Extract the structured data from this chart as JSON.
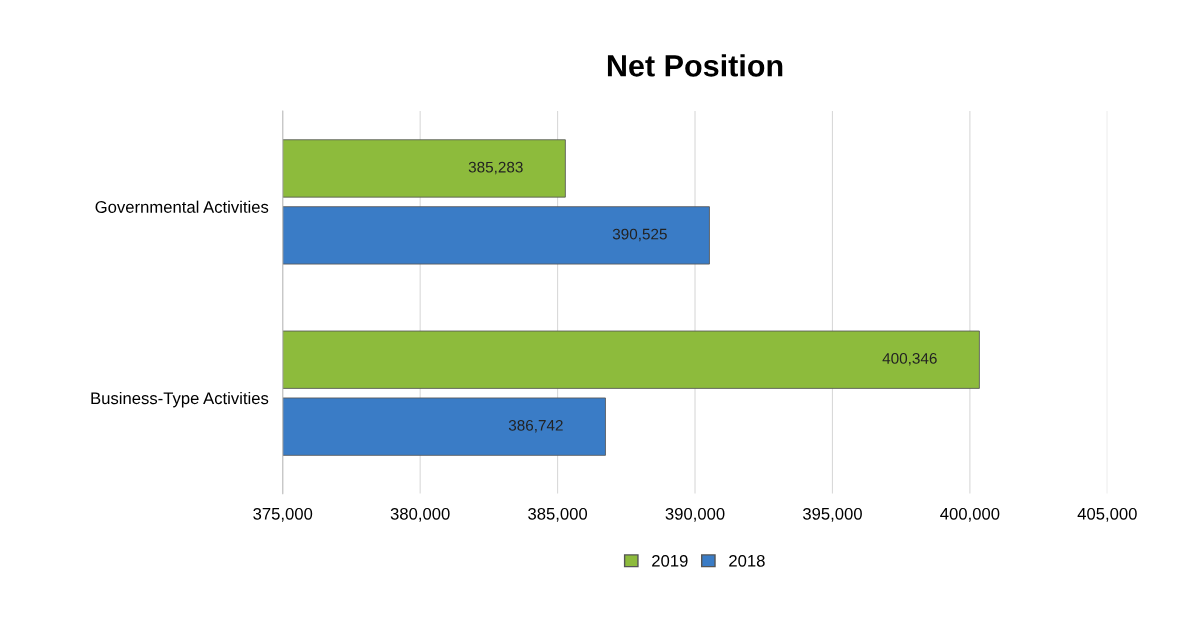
{
  "chart_data": {
    "type": "bar",
    "orientation": "horizontal",
    "title": "Net Position",
    "categories": [
      "Governmental Activities",
      "Business-Type Activities"
    ],
    "series": [
      {
        "name": "2019",
        "color": "#8dbb3c",
        "values": [
          385283,
          400346
        ],
        "value_labels": [
          "385,283",
          "400,346"
        ]
      },
      {
        "name": "2018",
        "color": "#3a7cc6",
        "values": [
          390525,
          386742
        ],
        "value_labels": [
          "390,525",
          "386,742"
        ]
      }
    ],
    "xlim": [
      375000,
      405000
    ],
    "xticks": [
      {
        "value": 375000,
        "label": "375,000"
      },
      {
        "value": 380000,
        "label": "380,000"
      },
      {
        "value": 385000,
        "label": "385,000"
      },
      {
        "value": 390000,
        "label": "390,000"
      },
      {
        "value": 395000,
        "label": "395,000"
      },
      {
        "value": 400000,
        "label": "400,000"
      },
      {
        "value": 405000,
        "label": "405,000"
      }
    ],
    "grid": "x",
    "legend": "bottom"
  }
}
